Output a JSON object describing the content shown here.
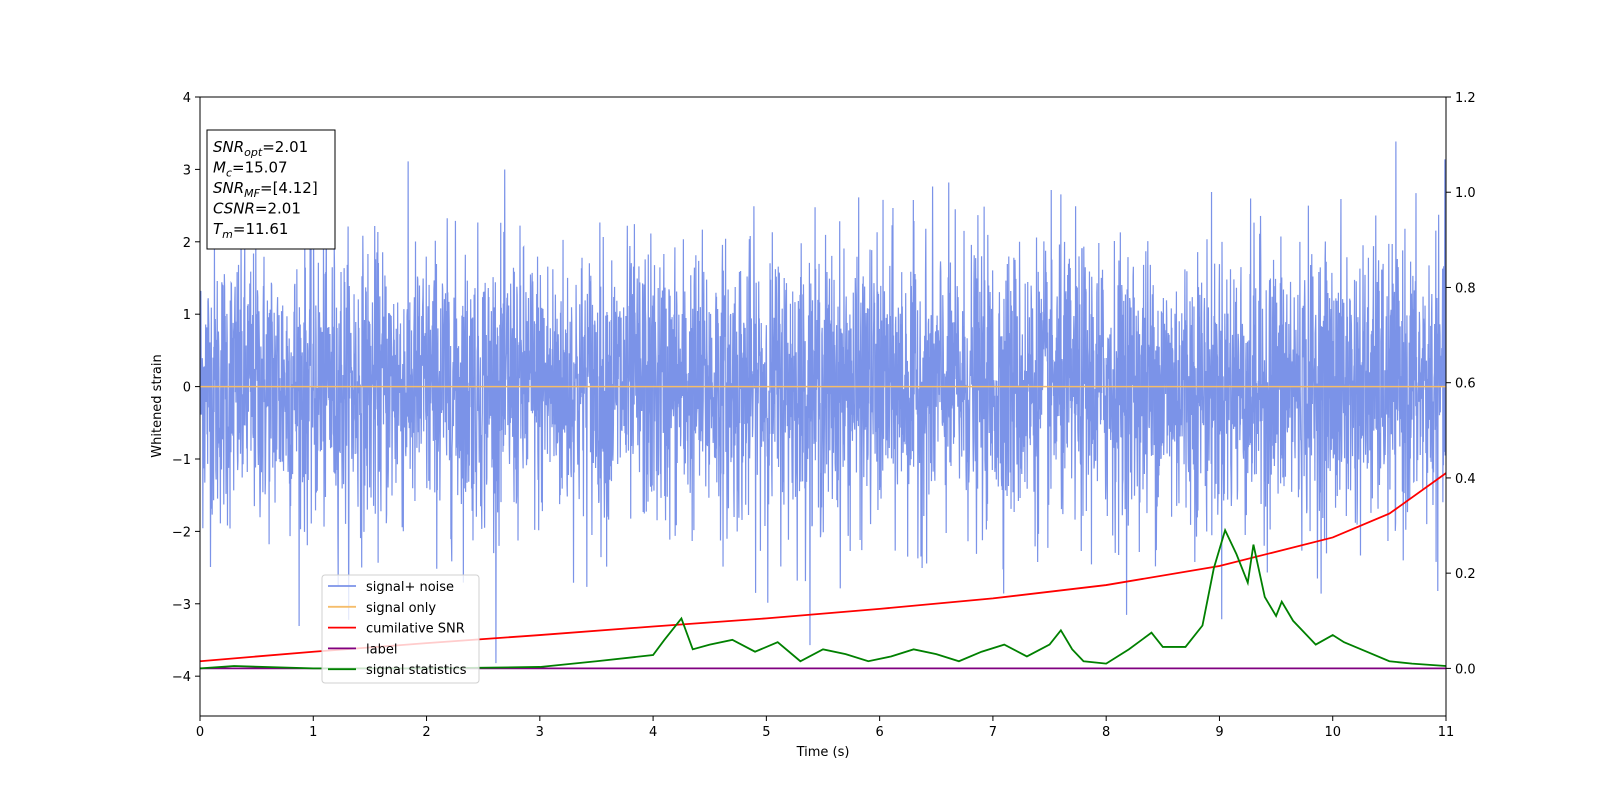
{
  "chart_data": {
    "type": "line",
    "xlabel": "Time (s)",
    "ylabel": "Whitened strain",
    "xlim": [
      0,
      11
    ],
    "ylim": [
      -4.55,
      4.0
    ],
    "ylim_right": [
      -0.1,
      1.2
    ],
    "x_ticks": [
      "0",
      "1",
      "2",
      "3",
      "4",
      "5",
      "6",
      "7",
      "8",
      "9",
      "10",
      "11"
    ],
    "y_ticks": [
      "−4",
      "−3",
      "−2",
      "−1",
      "0",
      "1",
      "2",
      "3",
      "4"
    ],
    "y_right_ticks": [
      "0.0",
      "0.2",
      "0.4",
      "0.6",
      "0.8",
      "1.0",
      "1.2"
    ],
    "grid": false,
    "legend_position": "lower-left",
    "info_box": {
      "lines": [
        {
          "sym": "SNR",
          "sub": "opt",
          "value": "=2.01"
        },
        {
          "sym": "M",
          "sub": "c",
          "value": "=15.07"
        },
        {
          "sym": "SNR",
          "sub": "MF",
          "value": "=[4.12]"
        },
        {
          "sym": "CSNR",
          "sub": "",
          "value": "=2.01"
        },
        {
          "sym": "T",
          "sub": "m",
          "value": "=11.61"
        }
      ]
    },
    "series": [
      {
        "name": "signal+ noise",
        "color": "#7b93e8",
        "axis": "left",
        "description_values": {
          "typical_range": [
            -2.0,
            2.0
          ],
          "max_peak": 3.6,
          "min_peak": -4.15
        }
      },
      {
        "name": "signal only",
        "color": "#f5bd6b",
        "axis": "left",
        "values_constant": 0.0
      },
      {
        "name": "cumilative SNR",
        "color": "#ff0000",
        "axis": "right",
        "x": [
          0,
          1,
          2,
          3,
          4,
          5,
          6,
          7,
          8,
          9,
          10,
          10.5,
          11
        ],
        "values": [
          0.015,
          0.035,
          0.053,
          0.07,
          0.088,
          0.105,
          0.125,
          0.147,
          0.175,
          0.215,
          0.275,
          0.325,
          0.41
        ]
      },
      {
        "name": "label",
        "color": "#800080",
        "axis": "right",
        "values_constant": 0.0
      },
      {
        "name": "signal statistics",
        "color": "#008000",
        "axis": "right",
        "x": [
          0,
          0.3,
          1.0,
          2.0,
          3.0,
          3.5,
          4.0,
          4.1,
          4.25,
          4.35,
          4.5,
          4.7,
          4.9,
          5.1,
          5.3,
          5.5,
          5.7,
          5.9,
          6.1,
          6.3,
          6.5,
          6.7,
          6.9,
          7.1,
          7.3,
          7.5,
          7.6,
          7.7,
          7.8,
          8.0,
          8.2,
          8.4,
          8.5,
          8.7,
          8.85,
          8.95,
          9.05,
          9.15,
          9.25,
          9.3,
          9.4,
          9.5,
          9.55,
          9.65,
          9.85,
          10.0,
          10.1,
          10.3,
          10.5,
          10.7,
          11.0
        ],
        "values": [
          0.0,
          0.005,
          0.0,
          0.0,
          0.003,
          0.015,
          0.028,
          0.06,
          0.105,
          0.04,
          0.05,
          0.06,
          0.035,
          0.055,
          0.015,
          0.04,
          0.03,
          0.015,
          0.025,
          0.04,
          0.03,
          0.015,
          0.035,
          0.05,
          0.025,
          0.05,
          0.08,
          0.04,
          0.015,
          0.01,
          0.04,
          0.075,
          0.045,
          0.045,
          0.09,
          0.21,
          0.29,
          0.24,
          0.18,
          0.26,
          0.15,
          0.11,
          0.14,
          0.1,
          0.05,
          0.07,
          0.055,
          0.035,
          0.015,
          0.01,
          0.005
        ]
      }
    ]
  }
}
